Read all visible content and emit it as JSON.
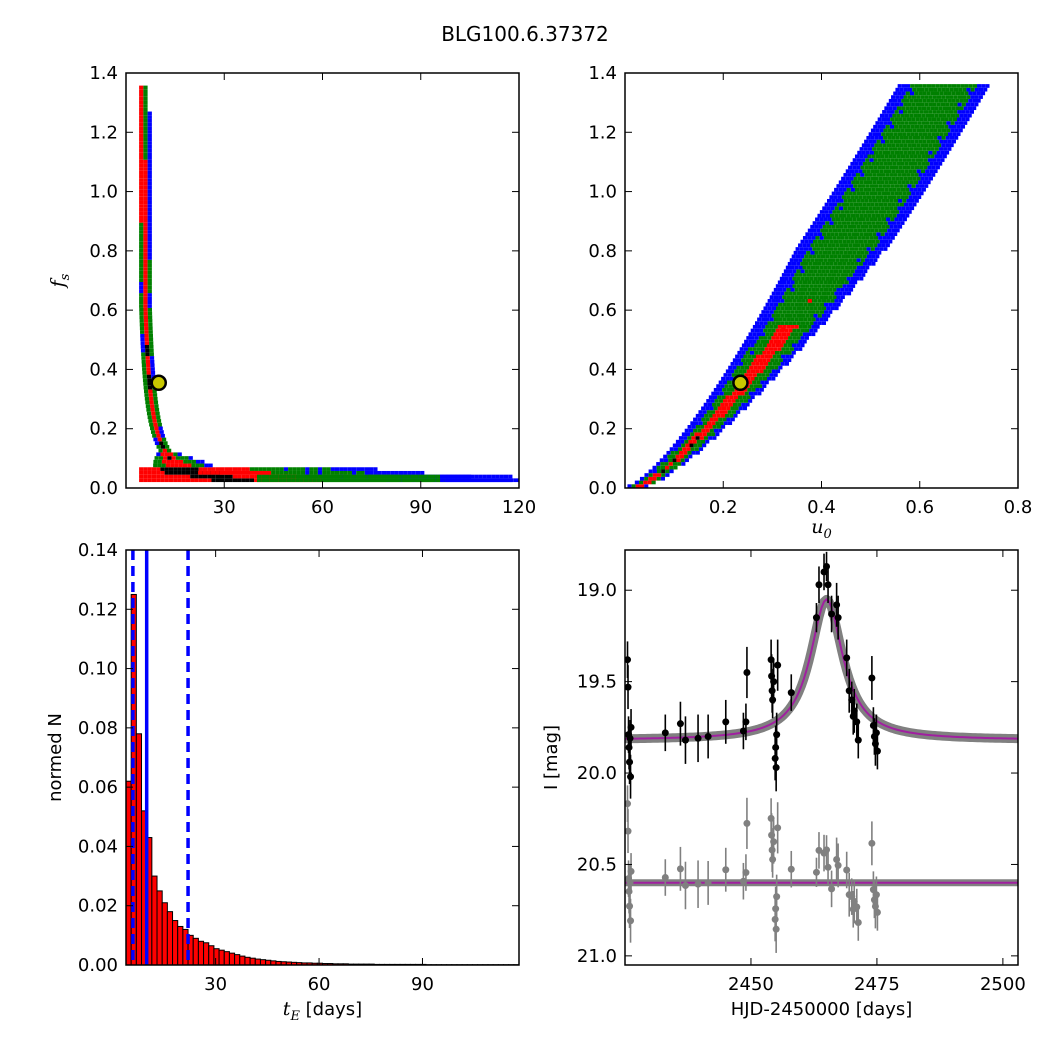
{
  "figure": {
    "title": "BLG100.6.37372"
  },
  "colors": {
    "sigma1": "#000000",
    "sigma2": "#ff0000",
    "sigma3": "#008000",
    "sigma4": "#0000ff",
    "model": "#a020a0",
    "ensemble": "#808080",
    "best": "#c8c800"
  },
  "chart_data": [
    {
      "id": "ts_vs_fs",
      "type": "heatmap",
      "title": "",
      "xlabel": "",
      "ylabel": "f_s",
      "xlim": [
        0,
        120
      ],
      "ylim": [
        0,
        1.4
      ],
      "xticks": [
        30,
        60,
        90,
        120
      ],
      "yticks": [
        0.0,
        0.2,
        0.4,
        0.6,
        0.8,
        1.0,
        1.2,
        1.4
      ],
      "best_fit": {
        "x": 10,
        "y": 0.355
      },
      "levels": [
        "1-sigma (black)",
        "2-sigma (red)",
        "3-sigma (green)",
        "outer (blue)"
      ]
    },
    {
      "id": "u0_vs_fs",
      "type": "heatmap",
      "title": "",
      "xlabel": "u_0",
      "ylabel": "",
      "xlim": [
        0,
        0.8
      ],
      "ylim": [
        0,
        1.4
      ],
      "xticks": [
        0.2,
        0.4,
        0.6,
        0.8
      ],
      "yticks": [
        0.0,
        0.2,
        0.4,
        0.6,
        0.8,
        1.0,
        1.2,
        1.4
      ],
      "best_fit": {
        "x": 0.235,
        "y": 0.355
      }
    },
    {
      "id": "tE_hist",
      "type": "bar",
      "title": "",
      "xlabel": "t_E [days]",
      "ylabel": "normed N",
      "xlim": [
        4,
        118
      ],
      "ylim": [
        0,
        0.14
      ],
      "xticks": [
        30,
        60,
        90
      ],
      "yticks": [
        0.0,
        0.02,
        0.04,
        0.06,
        0.08,
        0.1,
        0.12,
        0.14
      ],
      "bin_width": 1.5,
      "x": [
        4.75,
        6.25,
        7.75,
        9.25,
        10.75,
        12.25,
        13.75,
        15.25,
        16.75,
        18.25,
        19.75,
        21.25,
        22.75,
        24.25,
        25.75,
        27.25,
        28.75,
        30.25,
        31.75,
        33.25,
        34.75,
        36.25,
        37.75,
        39.25,
        40.75,
        42.25,
        43.75,
        45.25,
        46.75,
        48.25,
        49.75,
        51.25,
        52.75,
        54.25,
        55.75,
        57.25,
        58.75,
        60.25,
        61.75,
        63.25,
        64.75,
        66.25,
        67.75,
        69.25,
        70.75,
        72.25,
        73.75,
        75.25,
        76.75,
        78.25,
        79.75,
        81.25,
        82.75,
        84.25,
        85.75,
        87.25,
        88.75,
        90.25,
        91.75,
        93.25,
        94.75,
        96.25,
        97.75,
        99.25,
        100.75,
        102.25,
        103.75,
        105.25,
        106.75,
        108.25,
        109.75,
        111.25,
        112.75,
        114.25,
        115.75,
        117.25
      ],
      "values": [
        0.062,
        0.125,
        0.078,
        0.052,
        0.043,
        0.03,
        0.025,
        0.021,
        0.018,
        0.015,
        0.013,
        0.012,
        0.01,
        0.009,
        0.008,
        0.0075,
        0.0065,
        0.0055,
        0.005,
        0.0045,
        0.004,
        0.0035,
        0.003,
        0.0026,
        0.0023,
        0.002,
        0.0018,
        0.0016,
        0.0014,
        0.0012,
        0.0011,
        0.001,
        0.0009,
        0.0008,
        0.0007,
        0.0007,
        0.0006,
        0.0006,
        0.0005,
        0.0005,
        0.0004,
        0.0004,
        0.0004,
        0.0003,
        0.0003,
        0.0003,
        0.0003,
        0.0003,
        0.0002,
        0.0002,
        0.0002,
        0.0002,
        0.0002,
        0.0002,
        0.0002,
        0.0002,
        0.0002,
        0.0002,
        0.0001,
        0.0001,
        0.0001,
        0.0001,
        0.0001,
        0.0001,
        0.0001,
        0.0001,
        0.0001,
        0.0001,
        0.0001,
        0.0001,
        0.0001,
        0.0001,
        0.0001,
        0.0001,
        0.0001,
        0.0001
      ],
      "vlines": [
        {
          "x": 6.0,
          "style": "dashed"
        },
        {
          "x": 10.0,
          "style": "solid"
        },
        {
          "x": 22.0,
          "style": "dashed"
        }
      ]
    },
    {
      "id": "lightcurve",
      "type": "scatter",
      "title": "",
      "xlabel": "HJD-2450000 [days]",
      "ylabel": "I [mag]",
      "xlim": [
        2425,
        2503
      ],
      "ylim": [
        21.05,
        18.78
      ],
      "xticks": [
        2450,
        2475,
        2500
      ],
      "yticks": [
        19.0,
        19.5,
        20.0,
        20.5,
        21.0
      ],
      "model": {
        "t0": 2465.0,
        "baseline": 19.82,
        "peak": 19.05,
        "tau": 5.0
      },
      "residual_offset": 20.6,
      "data": [
        [
          2425.5,
          19.38,
          0.1
        ],
        [
          2425.6,
          19.53,
          0.12
        ],
        [
          2425.7,
          19.79,
          0.1
        ],
        [
          2425.8,
          19.86,
          0.12
        ],
        [
          2425.9,
          19.94,
          0.12
        ],
        [
          2426.0,
          19.81,
          0.1
        ],
        [
          2426.1,
          20.02,
          0.12
        ],
        [
          2426.2,
          19.75,
          0.1
        ],
        [
          2433.0,
          19.78,
          0.1
        ],
        [
          2436.0,
          19.73,
          0.12
        ],
        [
          2437.0,
          19.82,
          0.13
        ],
        [
          2439.5,
          19.81,
          0.13
        ],
        [
          2441.5,
          19.8,
          0.12
        ],
        [
          2445.0,
          19.72,
          0.12
        ],
        [
          2448.5,
          19.77,
          0.1
        ],
        [
          2449.0,
          19.72,
          0.1
        ],
        [
          2449.2,
          19.45,
          0.14
        ],
        [
          2454.0,
          19.38,
          0.11
        ],
        [
          2454.1,
          19.47,
          0.12
        ],
        [
          2454.2,
          19.55,
          0.12
        ],
        [
          2454.3,
          19.6,
          0.1
        ],
        [
          2454.5,
          19.5,
          0.12
        ],
        [
          2454.8,
          19.92,
          0.12
        ],
        [
          2455.0,
          19.97,
          0.13
        ],
        [
          2454.9,
          19.86,
          0.12
        ],
        [
          2455.1,
          19.79,
          0.12
        ],
        [
          2455.3,
          19.41,
          0.14
        ],
        [
          2458.0,
          19.56,
          0.1
        ],
        [
          2463.0,
          19.15,
          0.08
        ],
        [
          2463.5,
          18.97,
          0.1
        ],
        [
          2464.5,
          18.9,
          0.1
        ],
        [
          2465.0,
          18.87,
          0.08
        ],
        [
          2465.3,
          18.97,
          0.1
        ],
        [
          2466.0,
          19.13,
          0.1
        ],
        [
          2467.0,
          19.08,
          0.12
        ],
        [
          2467.3,
          19.15,
          0.12
        ],
        [
          2469.0,
          19.37,
          0.1
        ],
        [
          2469.5,
          19.55,
          0.12
        ],
        [
          2470.0,
          19.6,
          0.1
        ],
        [
          2470.3,
          19.69,
          0.1
        ],
        [
          2470.5,
          19.66,
          0.12
        ],
        [
          2471.0,
          19.72,
          0.1
        ],
        [
          2471.3,
          19.82,
          0.1
        ],
        [
          2474.0,
          19.48,
          0.12
        ],
        [
          2474.3,
          19.74,
          0.1
        ],
        [
          2474.5,
          19.8,
          0.1
        ],
        [
          2474.7,
          19.84,
          0.12
        ],
        [
          2474.9,
          19.78,
          0.1
        ],
        [
          2475.1,
          19.88,
          0.1
        ]
      ]
    }
  ]
}
